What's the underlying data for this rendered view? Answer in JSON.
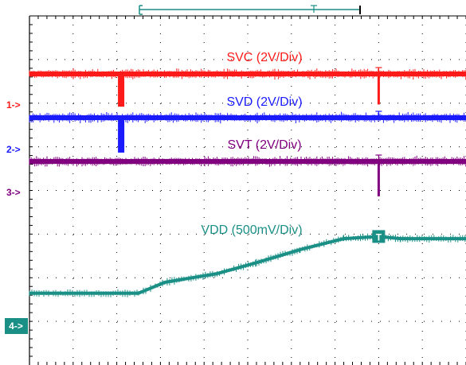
{
  "chart_data": {
    "type": "line",
    "title": "",
    "xlabel": "",
    "ylabel": "",
    "grid": true,
    "grid_divisions": {
      "x": 10,
      "y": 8
    },
    "series": [
      {
        "name": "SVC (2V/Div)",
        "color": "#ff1a1a",
        "channel_marker": "1->",
        "level_div": 4.05,
        "glitches_div": [
          [
            2.1,
            4.05,
            3.3
          ],
          [
            8.0,
            4.05,
            3.35
          ]
        ]
      },
      {
        "name": "SVD (2V/Div)",
        "color": "#1a1aff",
        "channel_marker": "2->",
        "level_div": 3.1,
        "glitches_div": [
          [
            2.1,
            3.1,
            2.3
          ],
          [
            8.0,
            3.1,
            3.3
          ]
        ]
      },
      {
        "name": "SVT (2V/Div)",
        "color": "#80007f",
        "channel_marker": "3->",
        "level_div": 2.1,
        "glitches_div": [
          [
            8.0,
            2.1,
            1.3
          ]
        ]
      },
      {
        "name": "VDD (500mV/Div)",
        "color": "#1a8f86",
        "channel_marker": "4->",
        "points_div": [
          [
            0,
            -0.05
          ],
          [
            2.5,
            -0.05
          ],
          [
            3.1,
            0.2
          ],
          [
            4.3,
            0.4
          ],
          [
            5.2,
            0.65
          ],
          [
            6.2,
            0.95
          ],
          [
            7.2,
            1.2
          ],
          [
            8.0,
            1.25
          ],
          [
            8.5,
            1.2
          ],
          [
            10.0,
            1.2
          ]
        ]
      }
    ],
    "trigger_marker": "T",
    "trigger_position_div": 8.0
  }
}
